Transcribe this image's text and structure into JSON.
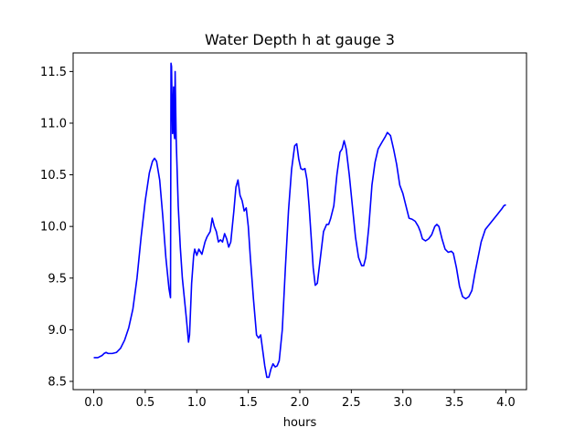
{
  "chart_data": {
    "type": "line",
    "title": "Water Depth h at gauge 3",
    "xlabel": "hours",
    "ylabel": "",
    "xlim": [
      -0.2,
      4.2
    ],
    "ylim": [
      8.42,
      11.68
    ],
    "x_ticks": [
      0.0,
      0.5,
      1.0,
      1.5,
      2.0,
      2.5,
      3.0,
      3.5,
      4.0
    ],
    "x_tick_labels": [
      "0.0",
      "0.5",
      "1.0",
      "1.5",
      "2.0",
      "2.5",
      "3.0",
      "3.5",
      "4.0"
    ],
    "y_ticks": [
      8.5,
      9.0,
      9.5,
      10.0,
      10.5,
      11.0,
      11.5
    ],
    "y_tick_labels": [
      "8.5",
      "9.0",
      "9.5",
      "10.0",
      "10.5",
      "11.0",
      "11.5"
    ],
    "grid": false,
    "legend": false,
    "series": [
      {
        "color": "#0000ff",
        "points": [
          [
            0.0,
            8.73
          ],
          [
            0.04,
            8.73
          ],
          [
            0.08,
            8.75
          ],
          [
            0.1,
            8.77
          ],
          [
            0.12,
            8.78
          ],
          [
            0.14,
            8.77
          ],
          [
            0.18,
            8.77
          ],
          [
            0.22,
            8.78
          ],
          [
            0.26,
            8.82
          ],
          [
            0.3,
            8.9
          ],
          [
            0.34,
            9.02
          ],
          [
            0.38,
            9.2
          ],
          [
            0.42,
            9.5
          ],
          [
            0.46,
            9.9
          ],
          [
            0.5,
            10.25
          ],
          [
            0.54,
            10.52
          ],
          [
            0.57,
            10.63
          ],
          [
            0.59,
            10.66
          ],
          [
            0.61,
            10.63
          ],
          [
            0.64,
            10.45
          ],
          [
            0.67,
            10.1
          ],
          [
            0.7,
            9.7
          ],
          [
            0.73,
            9.4
          ],
          [
            0.745,
            9.31
          ],
          [
            0.75,
            11.58
          ],
          [
            0.755,
            11.55
          ],
          [
            0.765,
            10.9
          ],
          [
            0.775,
            11.35
          ],
          [
            0.78,
            10.9
          ],
          [
            0.785,
            10.85
          ],
          [
            0.79,
            11.5
          ],
          [
            0.8,
            10.85
          ],
          [
            0.82,
            10.2
          ],
          [
            0.84,
            9.8
          ],
          [
            0.86,
            9.5
          ],
          [
            0.88,
            9.3
          ],
          [
            0.9,
            9.1
          ],
          [
            0.92,
            8.88
          ],
          [
            0.93,
            8.95
          ],
          [
            0.95,
            9.45
          ],
          [
            0.97,
            9.72
          ],
          [
            0.98,
            9.78
          ],
          [
            1.0,
            9.72
          ],
          [
            1.02,
            9.78
          ],
          [
            1.05,
            9.73
          ],
          [
            1.08,
            9.85
          ],
          [
            1.1,
            9.9
          ],
          [
            1.13,
            9.95
          ],
          [
            1.15,
            10.08
          ],
          [
            1.17,
            10.0
          ],
          [
            1.19,
            9.95
          ],
          [
            1.21,
            9.85
          ],
          [
            1.23,
            9.87
          ],
          [
            1.25,
            9.85
          ],
          [
            1.27,
            9.93
          ],
          [
            1.29,
            9.88
          ],
          [
            1.31,
            9.8
          ],
          [
            1.33,
            9.85
          ],
          [
            1.36,
            10.15
          ],
          [
            1.38,
            10.38
          ],
          [
            1.4,
            10.45
          ],
          [
            1.42,
            10.3
          ],
          [
            1.44,
            10.25
          ],
          [
            1.46,
            10.15
          ],
          [
            1.48,
            10.18
          ],
          [
            1.5,
            10.0
          ],
          [
            1.52,
            9.7
          ],
          [
            1.55,
            9.3
          ],
          [
            1.58,
            8.95
          ],
          [
            1.6,
            8.92
          ],
          [
            1.62,
            8.95
          ],
          [
            1.64,
            8.8
          ],
          [
            1.66,
            8.65
          ],
          [
            1.68,
            8.54
          ],
          [
            1.7,
            8.54
          ],
          [
            1.72,
            8.62
          ],
          [
            1.74,
            8.67
          ],
          [
            1.76,
            8.64
          ],
          [
            1.78,
            8.65
          ],
          [
            1.8,
            8.7
          ],
          [
            1.83,
            9.0
          ],
          [
            1.86,
            9.6
          ],
          [
            1.89,
            10.15
          ],
          [
            1.92,
            10.55
          ],
          [
            1.95,
            10.78
          ],
          [
            1.97,
            10.8
          ],
          [
            1.99,
            10.65
          ],
          [
            2.01,
            10.56
          ],
          [
            2.03,
            10.55
          ],
          [
            2.05,
            10.56
          ],
          [
            2.07,
            10.45
          ],
          [
            2.09,
            10.2
          ],
          [
            2.11,
            9.9
          ],
          [
            2.13,
            9.6
          ],
          [
            2.15,
            9.43
          ],
          [
            2.17,
            9.45
          ],
          [
            2.2,
            9.7
          ],
          [
            2.23,
            9.95
          ],
          [
            2.26,
            10.02
          ],
          [
            2.28,
            10.02
          ],
          [
            2.3,
            10.08
          ],
          [
            2.33,
            10.2
          ],
          [
            2.36,
            10.5
          ],
          [
            2.39,
            10.72
          ],
          [
            2.41,
            10.75
          ],
          [
            2.43,
            10.83
          ],
          [
            2.45,
            10.75
          ],
          [
            2.48,
            10.5
          ],
          [
            2.51,
            10.2
          ],
          [
            2.54,
            9.9
          ],
          [
            2.57,
            9.7
          ],
          [
            2.6,
            9.62
          ],
          [
            2.62,
            9.62
          ],
          [
            2.64,
            9.7
          ],
          [
            2.67,
            10.0
          ],
          [
            2.7,
            10.4
          ],
          [
            2.73,
            10.62
          ],
          [
            2.76,
            10.75
          ],
          [
            2.8,
            10.82
          ],
          [
            2.83,
            10.87
          ],
          [
            2.85,
            10.91
          ],
          [
            2.88,
            10.88
          ],
          [
            2.91,
            10.75
          ],
          [
            2.94,
            10.6
          ],
          [
            2.97,
            10.4
          ],
          [
            3.0,
            10.32
          ],
          [
            3.03,
            10.2
          ],
          [
            3.06,
            10.08
          ],
          [
            3.09,
            10.07
          ],
          [
            3.12,
            10.05
          ],
          [
            3.15,
            10.0
          ],
          [
            3.17,
            9.95
          ],
          [
            3.19,
            9.88
          ],
          [
            3.22,
            9.86
          ],
          [
            3.25,
            9.88
          ],
          [
            3.28,
            9.92
          ],
          [
            3.31,
            10.0
          ],
          [
            3.33,
            10.02
          ],
          [
            3.35,
            10.0
          ],
          [
            3.38,
            9.88
          ],
          [
            3.41,
            9.78
          ],
          [
            3.44,
            9.75
          ],
          [
            3.47,
            9.76
          ],
          [
            3.49,
            9.74
          ],
          [
            3.52,
            9.6
          ],
          [
            3.55,
            9.42
          ],
          [
            3.58,
            9.32
          ],
          [
            3.61,
            9.3
          ],
          [
            3.64,
            9.32
          ],
          [
            3.67,
            9.38
          ],
          [
            3.7,
            9.55
          ],
          [
            3.73,
            9.7
          ],
          [
            3.76,
            9.85
          ],
          [
            3.8,
            9.97
          ],
          [
            3.84,
            10.02
          ],
          [
            3.88,
            10.07
          ],
          [
            3.92,
            10.12
          ],
          [
            3.96,
            10.17
          ],
          [
            3.98,
            10.2
          ],
          [
            4.0,
            10.21
          ]
        ]
      }
    ]
  }
}
